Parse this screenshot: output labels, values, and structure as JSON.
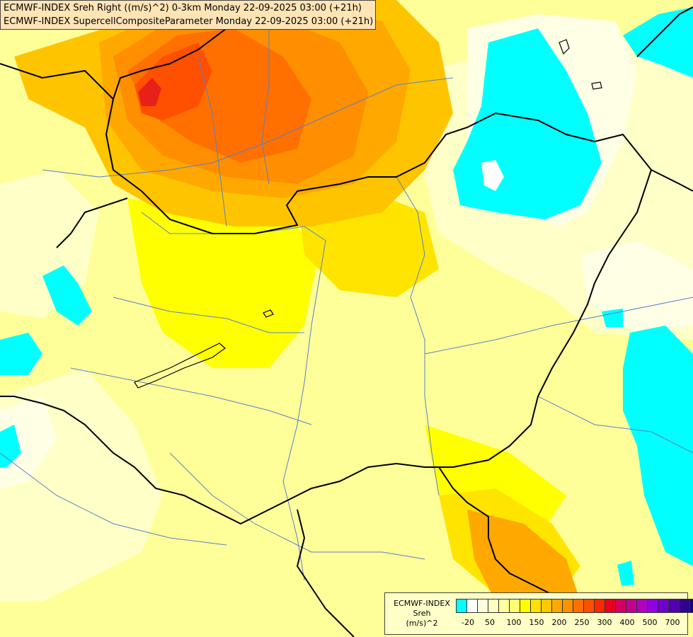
{
  "title": {
    "line1": "ECMWF-INDEX Sreh Right ((m/s)^2) 0-3km Monday 22-09-2025 03:00 (+21h)",
    "line2": "ECMWF-INDEX SupercellCompositeParameter Monday 22-09-2025 03:00 (+21h)"
  },
  "legend": {
    "source": "ECMWF-INDEX",
    "variable": "Sreh",
    "unit": "(m/s)^2",
    "colors": [
      "#00ffff",
      "#ffffff",
      "#ffffe0",
      "#ffffc0",
      "#ffffa0",
      "#ffff70",
      "#ffff00",
      "#ffe000",
      "#ffc800",
      "#ffa800",
      "#ff9000",
      "#ff7000",
      "#ff5000",
      "#ff2800",
      "#e80020",
      "#d00060",
      "#c00090",
      "#b000c0",
      "#9000e0",
      "#7000d0",
      "#5000b0",
      "#300090",
      "#100070"
    ],
    "ticks": [
      "-20",
      "50",
      "100",
      "150",
      "200",
      "250",
      "300",
      "400",
      "500",
      "700"
    ]
  }
}
